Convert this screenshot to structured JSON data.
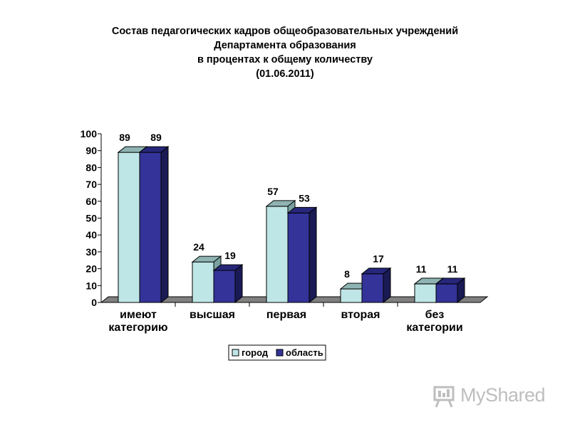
{
  "title_lines": [
    "Состав педагогических кадров общеобразовательных учреждений",
    "Департамента образования",
    "в процентах к общему количеству",
    "(01.06.2011)"
  ],
  "chart_data": {
    "type": "bar",
    "categories": [
      [
        "имеют",
        "категорию"
      ],
      [
        "высшая"
      ],
      [
        "первая"
      ],
      [
        "вторая"
      ],
      [
        "без",
        "категории"
      ]
    ],
    "series": [
      {
        "name": "город",
        "values": [
          89,
          24,
          57,
          8,
          11
        ],
        "color": "#bfe6e6",
        "top_color": "#8fb3b3",
        "side_color": "#7aa0a0"
      },
      {
        "name": "область",
        "values": [
          89,
          19,
          53,
          17,
          11
        ],
        "color": "#333399",
        "top_color": "#26267a",
        "side_color": "#1a1a55"
      }
    ],
    "ylim": [
      0,
      100
    ],
    "yticks": [
      "0",
      "10",
      "20",
      "30",
      "40",
      "50",
      "60",
      "70",
      "80",
      "90",
      "100"
    ],
    "legend_position": "bottom"
  },
  "watermark": {
    "text": "MyShared",
    "icon": "presentation-board-icon"
  }
}
